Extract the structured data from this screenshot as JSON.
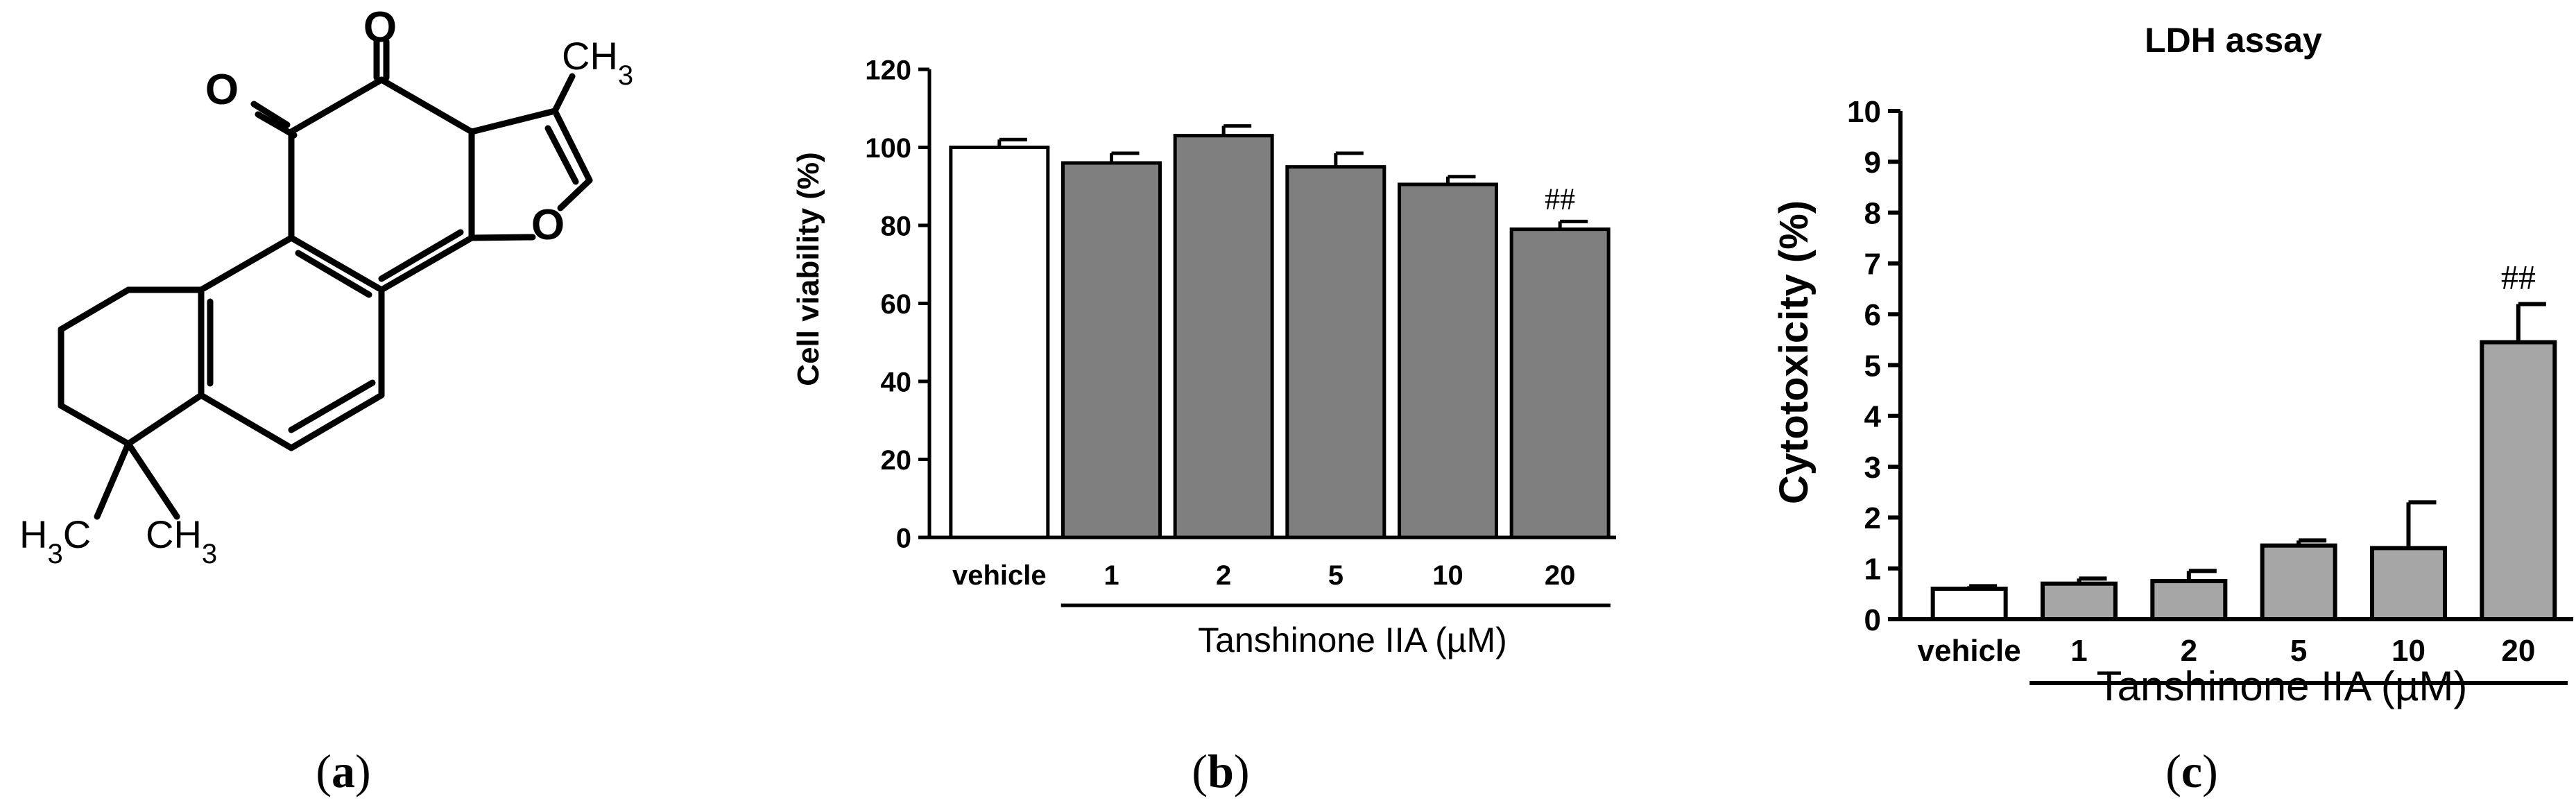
{
  "panels": {
    "a": {
      "label_letter": "a"
    },
    "b": {
      "label_letter": "b"
    },
    "c": {
      "label_letter": "c"
    }
  },
  "molecule": {
    "name": "Tanshinone IIA",
    "atoms": {
      "o_upper": "O",
      "o_left": "O",
      "o_ring": "O",
      "ch3_top": "CH3",
      "h3c_left": "H3C",
      "ch3_bottom": "CH3"
    }
  },
  "colors": {
    "vehicle_bar": "#ffffff",
    "treated_bar_b": "#7f7f7f",
    "treated_bar_c": "#a6a6a6",
    "ink": "#000000"
  },
  "chart_data": [
    {
      "id": "b",
      "type": "bar",
      "title": "",
      "xlabel": "Tanshinone IIA (µM)",
      "ylabel": "Cell viability (%)",
      "ylim": [
        0,
        120
      ],
      "yticks": [
        0,
        20,
        40,
        60,
        80,
        100,
        120
      ],
      "categories": [
        "vehicle",
        "1",
        "2",
        "5",
        "10",
        "20"
      ],
      "values": [
        100,
        96,
        103,
        95,
        90.5,
        79
      ],
      "errors": [
        2,
        2.5,
        2.5,
        3.5,
        2,
        2
      ],
      "annotations": [
        {
          "category": "20",
          "text": "##"
        }
      ],
      "grid": false
    },
    {
      "id": "c",
      "type": "bar",
      "title": "LDH assay",
      "xlabel": "Tanshinone IIA (µM)",
      "ylabel": "Cytotoxicity (%)",
      "ylim": [
        0,
        10
      ],
      "yticks": [
        0,
        1,
        2,
        3,
        4,
        5,
        6,
        7,
        8,
        9,
        10
      ],
      "categories": [
        "vehicle",
        "1",
        "2",
        "5",
        "10",
        "20"
      ],
      "values": [
        0.6,
        0.7,
        0.75,
        1.45,
        1.4,
        5.45
      ],
      "errors": [
        0.05,
        0.1,
        0.2,
        0.1,
        0.9,
        0.75
      ],
      "annotations": [
        {
          "category": "20",
          "text": "##"
        }
      ],
      "grid": false
    }
  ]
}
